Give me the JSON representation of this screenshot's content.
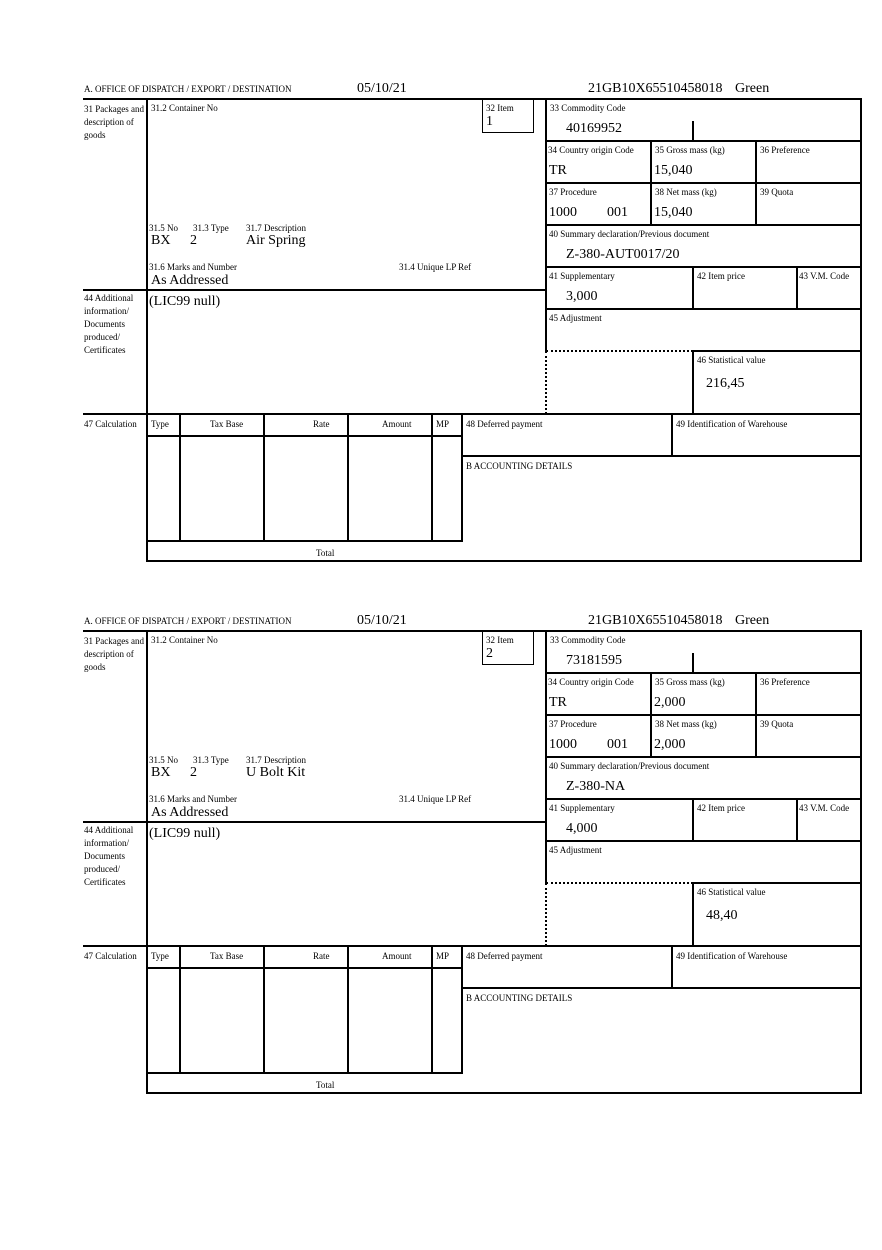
{
  "header_labels": {
    "office": "A.  OFFICE OF DISPATCH / EXPORT / DESTINATION"
  },
  "labels": {
    "l31": "31 Packages and description of goods",
    "l31_2": "31.2 Container No",
    "l32": "32 Item",
    "l31_5": "31.5 No",
    "l31_3": "31.3 Type",
    "l31_7": "31.7 Description",
    "l31_6": "31.6 Marks and Number",
    "l31_4": "31.4 Unique LP Ref",
    "l44": "44 Additional information/ Documents produced/ Certificates",
    "l33": "33 Commodity Code",
    "l34": "34 Country origin Code",
    "l35": "35 Gross mass (kg)",
    "l36": "36 Preference",
    "l37": "37 Procedure",
    "l38": "38 Net mass (kg)",
    "l39": "39 Quota",
    "l40": "40 Summary declaration/Previous document",
    "l41": "41 Supplementary",
    "l42": "42 Item price",
    "l43": "43 V.M. Code",
    "l45": "45 Adjustment",
    "l46": "46 Statistical value",
    "l47": "47 Calculation",
    "col_type": "Type",
    "col_taxbase": "Tax Base",
    "col_rate": "Rate",
    "col_amount": "Amount",
    "col_mp": "MP",
    "total": "Total",
    "l48": "48 Deferred payment",
    "l49": "49 Identification of Warehouse",
    "lB": "B ACCOUNTING DETAILS"
  },
  "forms": [
    {
      "date": "05/10/21",
      "reference": "21GB10X65510458018",
      "route": "Green",
      "item": "1",
      "no": "BX",
      "type": "2",
      "description": "Air Spring",
      "marks": "As Addressed",
      "additional_info": "(LIC99 null)",
      "commodity_code": "40169952",
      "country_origin": "TR",
      "gross_mass": "15,040",
      "procedure_1": "1000",
      "procedure_2": "001",
      "net_mass": "15,040",
      "summary_declaration": "Z-380-AUT0017/20",
      "supplementary": "3,000",
      "statistical_value": "216,45"
    },
    {
      "date": "05/10/21",
      "reference": "21GB10X65510458018",
      "route": "Green",
      "item": "2",
      "no": "BX",
      "type": "2",
      "description": "U Bolt Kit",
      "marks": "As Addressed",
      "additional_info": "(LIC99 null)",
      "commodity_code": "73181595",
      "country_origin": "TR",
      "gross_mass": "2,000",
      "procedure_1": "1000",
      "procedure_2": "001",
      "net_mass": "2,000",
      "summary_declaration": "Z-380-NA",
      "supplementary": "4,000",
      "statistical_value": "48,40"
    }
  ]
}
